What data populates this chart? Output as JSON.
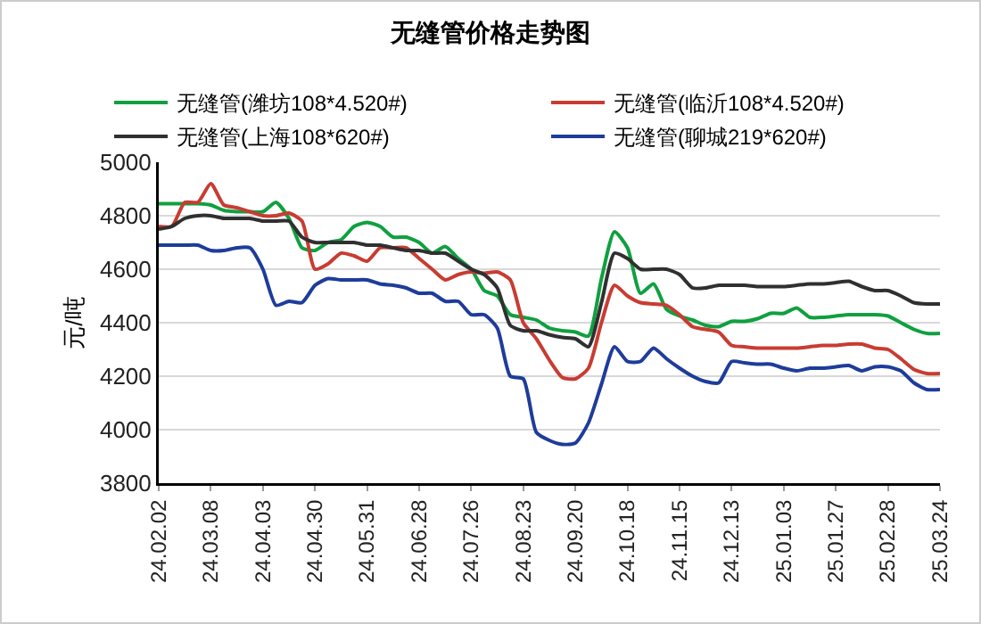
{
  "chart_data": {
    "type": "line",
    "title": "无缝管价格走势图",
    "ylabel": "元/吨",
    "categories": [
      "24.02.02",
      null,
      null,
      null,
      "24.03.08",
      null,
      null,
      null,
      "24.04.03",
      null,
      null,
      null,
      "24.04.30",
      null,
      null,
      null,
      "24.05.31",
      null,
      null,
      null,
      "24.06.28",
      null,
      null,
      null,
      "24.07.26",
      null,
      null,
      null,
      "24.08.23",
      null,
      null,
      null,
      "24.09.20",
      null,
      null,
      null,
      "24.10.18",
      null,
      null,
      null,
      "24.11.15",
      null,
      null,
      null,
      "24.12.13",
      null,
      null,
      null,
      "25.01.03",
      null,
      null,
      null,
      "25.01.27",
      null,
      null,
      null,
      "25.02.28",
      null,
      null,
      null,
      "25.03.24"
    ],
    "series": [
      {
        "name": "无缝管(潍坊108*4.520#)",
        "color": "#10a040",
        "values": [
          4845,
          4845,
          4845,
          4845,
          4840,
          4820,
          4815,
          4815,
          4815,
          4850,
          4790,
          4680,
          4670,
          4700,
          4710,
          4760,
          4775,
          4760,
          4720,
          4720,
          4700,
          4660,
          4685,
          4640,
          4600,
          4520,
          4500,
          4430,
          4420,
          4410,
          4380,
          4370,
          4365,
          4350,
          4565,
          4740,
          4680,
          4510,
          4545,
          4450,
          4425,
          4410,
          4390,
          4385,
          4405,
          4405,
          4415,
          4435,
          4435,
          4455,
          4420,
          4420,
          4425,
          4430,
          4430,
          4430,
          4425,
          4400,
          4375,
          4360,
          4360
        ]
      },
      {
        "name": "无缝管(临沂108*4.520#)",
        "color": "#c83c32",
        "values": [
          4760,
          4760,
          4850,
          4850,
          4920,
          4840,
          4830,
          4815,
          4800,
          4800,
          4810,
          4780,
          4600,
          4620,
          4660,
          4650,
          4630,
          4680,
          4680,
          4680,
          4640,
          4600,
          4560,
          4580,
          4590,
          4585,
          4590,
          4560,
          4400,
          4340,
          4260,
          4195,
          4190,
          4230,
          4400,
          4540,
          4500,
          4475,
          4470,
          4465,
          4430,
          4385,
          4375,
          4365,
          4315,
          4310,
          4305,
          4305,
          4305,
          4305,
          4310,
          4315,
          4315,
          4320,
          4320,
          4305,
          4300,
          4265,
          4225,
          4210,
          4210
        ]
      },
      {
        "name": "无缝管(上海108*620#)",
        "color": "#303030",
        "values": [
          4750,
          4760,
          4790,
          4800,
          4800,
          4790,
          4790,
          4790,
          4780,
          4780,
          4780,
          4720,
          4700,
          4700,
          4700,
          4700,
          4690,
          4690,
          4680,
          4670,
          4670,
          4660,
          4660,
          4630,
          4600,
          4580,
          4530,
          4390,
          4370,
          4370,
          4355,
          4345,
          4340,
          4310,
          4475,
          4660,
          4640,
          4600,
          4600,
          4600,
          4580,
          4530,
          4530,
          4540,
          4540,
          4540,
          4535,
          4535,
          4535,
          4540,
          4545,
          4545,
          4550,
          4555,
          4535,
          4520,
          4520,
          4500,
          4475,
          4470,
          4470
        ]
      },
      {
        "name": "无缝管(聊城219*620#)",
        "color": "#1e3c9a",
        "values": [
          4690,
          4690,
          4690,
          4690,
          4670,
          4670,
          4680,
          4680,
          4600,
          4465,
          4480,
          4475,
          4540,
          4565,
          4560,
          4560,
          4560,
          4545,
          4540,
          4530,
          4510,
          4510,
          4480,
          4480,
          4430,
          4430,
          4380,
          4200,
          4190,
          3990,
          3960,
          3945,
          3950,
          4025,
          4170,
          4310,
          4255,
          4255,
          4305,
          4265,
          4230,
          4200,
          4180,
          4175,
          4255,
          4250,
          4245,
          4245,
          4230,
          4220,
          4230,
          4230,
          4235,
          4240,
          4220,
          4235,
          4235,
          4220,
          4175,
          4150,
          4150
        ]
      }
    ],
    "ylim": [
      3800,
      5000
    ],
    "yticks": [
      3800,
      4000,
      4200,
      4400,
      4600,
      4800,
      5000
    ],
    "grid": "y",
    "legend": "top",
    "line_style": "solid"
  }
}
